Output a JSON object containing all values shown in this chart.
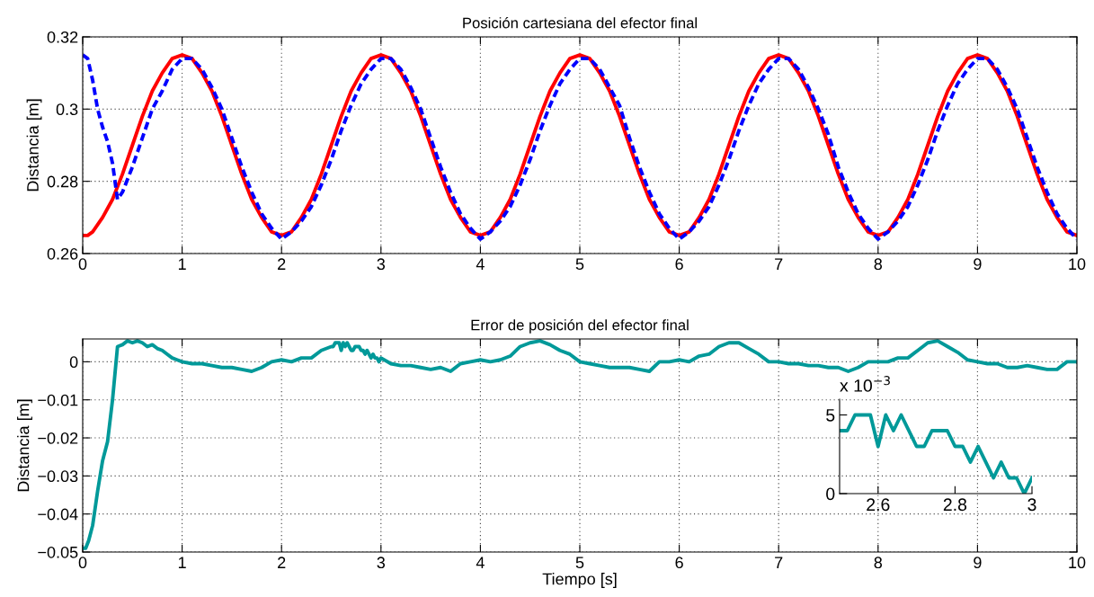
{
  "chart_data": [
    {
      "type": "line",
      "title": "Posición cartesiana del efector final",
      "ylabel": "Distancia [m]",
      "xlim": [
        0,
        10
      ],
      "ylim": [
        0.26,
        0.32
      ],
      "xticks": [
        0,
        1,
        2,
        3,
        4,
        5,
        6,
        7,
        8,
        9,
        10
      ],
      "yticks": [
        0.26,
        0.28,
        0.3,
        0.32
      ],
      "grid": true,
      "series": [
        {
          "color": "#ff0000",
          "line_style": "solid",
          "x": [
            0,
            0.05,
            0.1,
            0.2,
            0.3,
            0.4,
            0.5,
            0.6,
            0.7,
            0.8,
            0.9,
            1.0,
            1.1,
            1.2,
            1.3,
            1.4,
            1.5,
            1.6,
            1.7,
            1.8,
            1.9,
            2.0,
            2.1,
            2.2,
            2.3,
            2.4,
            2.5,
            2.6,
            2.7,
            2.8,
            2.9,
            3.0,
            3.1,
            3.2,
            3.3,
            3.4,
            3.5,
            3.6,
            3.7,
            3.8,
            3.9,
            4.0,
            4.1,
            4.2,
            4.3,
            4.4,
            4.5,
            4.6,
            4.7,
            4.8,
            4.9,
            5.0,
            5.1,
            5.2,
            5.3,
            5.4,
            5.5,
            5.6,
            5.7,
            5.8,
            5.9,
            6.0,
            6.1,
            6.2,
            6.3,
            6.4,
            6.5,
            6.6,
            6.7,
            6.8,
            6.9,
            7.0,
            7.1,
            7.2,
            7.3,
            7.4,
            7.5,
            7.6,
            7.7,
            7.8,
            7.9,
            8.0,
            8.1,
            8.2,
            8.3,
            8.4,
            8.5,
            8.6,
            8.7,
            8.8,
            8.9,
            9.0,
            9.1,
            9.2,
            9.3,
            9.4,
            9.5,
            9.6,
            9.7,
            9.8,
            9.9,
            10.0
          ],
          "values": [
            0.265,
            0.265,
            0.266,
            0.27,
            0.275,
            0.282,
            0.29,
            0.298,
            0.305,
            0.31,
            0.314,
            0.315,
            0.314,
            0.31,
            0.305,
            0.298,
            0.29,
            0.282,
            0.275,
            0.27,
            0.266,
            0.265,
            0.266,
            0.27,
            0.275,
            0.282,
            0.29,
            0.298,
            0.305,
            0.31,
            0.314,
            0.315,
            0.314,
            0.31,
            0.305,
            0.298,
            0.29,
            0.282,
            0.275,
            0.27,
            0.266,
            0.265,
            0.266,
            0.27,
            0.275,
            0.282,
            0.29,
            0.298,
            0.305,
            0.31,
            0.314,
            0.315,
            0.314,
            0.31,
            0.305,
            0.298,
            0.29,
            0.282,
            0.275,
            0.27,
            0.266,
            0.265,
            0.266,
            0.27,
            0.275,
            0.282,
            0.29,
            0.298,
            0.305,
            0.31,
            0.314,
            0.315,
            0.314,
            0.31,
            0.305,
            0.298,
            0.29,
            0.282,
            0.275,
            0.27,
            0.266,
            0.265,
            0.266,
            0.27,
            0.275,
            0.282,
            0.29,
            0.298,
            0.305,
            0.31,
            0.314,
            0.315,
            0.314,
            0.31,
            0.305,
            0.298,
            0.29,
            0.282,
            0.275,
            0.27,
            0.266,
            0.265
          ]
        },
        {
          "color": "#0000ff",
          "line_style": "dashed",
          "x": [
            0,
            0.05,
            0.1,
            0.15,
            0.2,
            0.25,
            0.3,
            0.35,
            0.4,
            0.5,
            0.6,
            0.7,
            0.8,
            0.9,
            1.0,
            1.1,
            1.2,
            1.3,
            1.4,
            1.5,
            1.6,
            1.7,
            1.8,
            1.9,
            2.0,
            2.1,
            2.2,
            2.3,
            2.4,
            2.5,
            2.6,
            2.7,
            2.8,
            2.9,
            3.0,
            3.1,
            3.2,
            3.3,
            3.4,
            3.5,
            3.6,
            3.7,
            3.8,
            3.9,
            4.0,
            4.1,
            4.2,
            4.3,
            4.4,
            4.5,
            4.6,
            4.7,
            4.8,
            4.9,
            5.0,
            5.1,
            5.2,
            5.3,
            5.4,
            5.5,
            5.6,
            5.7,
            5.8,
            5.9,
            6.0,
            6.1,
            6.2,
            6.3,
            6.4,
            6.5,
            6.6,
            6.7,
            6.8,
            6.9,
            7.0,
            7.1,
            7.2,
            7.3,
            7.4,
            7.5,
            7.6,
            7.7,
            7.8,
            7.9,
            8.0,
            8.1,
            8.2,
            8.3,
            8.4,
            8.5,
            8.6,
            8.7,
            8.8,
            8.9,
            9.0,
            9.1,
            9.2,
            9.3,
            9.4,
            9.5,
            9.6,
            9.7,
            9.8,
            9.9,
            10.0
          ],
          "values": [
            0.315,
            0.314,
            0.308,
            0.3,
            0.295,
            0.291,
            0.285,
            0.275,
            0.277,
            0.284,
            0.292,
            0.3,
            0.305,
            0.311,
            0.314,
            0.314,
            0.311,
            0.306,
            0.3,
            0.292,
            0.284,
            0.277,
            0.271,
            0.267,
            0.264,
            0.266,
            0.269,
            0.273,
            0.279,
            0.286,
            0.294,
            0.301,
            0.307,
            0.311,
            0.314,
            0.314,
            0.311,
            0.306,
            0.3,
            0.292,
            0.284,
            0.277,
            0.271,
            0.267,
            0.264,
            0.266,
            0.269,
            0.273,
            0.279,
            0.286,
            0.294,
            0.301,
            0.307,
            0.311,
            0.314,
            0.314,
            0.311,
            0.306,
            0.301,
            0.292,
            0.284,
            0.277,
            0.271,
            0.267,
            0.264,
            0.266,
            0.269,
            0.273,
            0.279,
            0.286,
            0.294,
            0.301,
            0.307,
            0.311,
            0.314,
            0.314,
            0.311,
            0.306,
            0.3,
            0.293,
            0.284,
            0.277,
            0.271,
            0.267,
            0.264,
            0.266,
            0.269,
            0.273,
            0.279,
            0.286,
            0.294,
            0.301,
            0.307,
            0.311,
            0.314,
            0.314,
            0.311,
            0.306,
            0.3,
            0.292,
            0.284,
            0.277,
            0.271,
            0.267,
            0.264
          ]
        }
      ]
    },
    {
      "type": "line",
      "title": "Error de posición del efector final",
      "xlabel": "Tiempo [s]",
      "ylabel": "Distancia [m]",
      "xlim": [
        0,
        10
      ],
      "ylim": [
        -0.05,
        0.006
      ],
      "xticks": [
        0,
        1,
        2,
        3,
        4,
        5,
        6,
        7,
        8,
        9,
        10
      ],
      "yticks": [
        {
          "value": -0.05,
          "label": "−0.05"
        },
        {
          "value": -0.04,
          "label": "−0.04"
        },
        {
          "value": -0.03,
          "label": "−0.03"
        },
        {
          "value": -0.02,
          "label": "−0.02"
        },
        {
          "value": -0.01,
          "label": "−0.01"
        },
        0
      ],
      "grid": true,
      "series": [
        {
          "color": "#009999",
          "line_style": "solid",
          "x": [
            0,
            0.03,
            0.06,
            0.1,
            0.15,
            0.2,
            0.25,
            0.3,
            0.35,
            0.4,
            0.45,
            0.5,
            0.55,
            0.6,
            0.65,
            0.7,
            0.75,
            0.8,
            0.85,
            0.9,
            0.95,
            1.0,
            1.1,
            1.2,
            1.3,
            1.4,
            1.5,
            1.6,
            1.7,
            1.8,
            1.9,
            2.0,
            2.1,
            2.2,
            2.3,
            2.4,
            2.5,
            2.52,
            2.54,
            2.58,
            2.6,
            2.62,
            2.64,
            2.66,
            2.7,
            2.72,
            2.74,
            2.78,
            2.8,
            2.82,
            2.84,
            2.86,
            2.9,
            2.92,
            2.94,
            2.96,
            2.98,
            3.0,
            3.1,
            3.2,
            3.3,
            3.4,
            3.5,
            3.6,
            3.7,
            3.8,
            3.9,
            4.0,
            4.1,
            4.2,
            4.3,
            4.4,
            4.5,
            4.6,
            4.7,
            4.8,
            4.9,
            5.0,
            5.1,
            5.2,
            5.3,
            5.4,
            5.5,
            5.6,
            5.7,
            5.8,
            5.9,
            6.0,
            6.1,
            6.2,
            6.3,
            6.4,
            6.5,
            6.6,
            6.7,
            6.8,
            6.9,
            7.0,
            7.1,
            7.2,
            7.3,
            7.4,
            7.5,
            7.6,
            7.7,
            7.8,
            7.9,
            8.0,
            8.1,
            8.2,
            8.3,
            8.4,
            8.5,
            8.6,
            8.7,
            8.8,
            8.9,
            9.0,
            9.1,
            9.2,
            9.3,
            9.4,
            9.5,
            9.6,
            9.7,
            9.8,
            9.9,
            10.0
          ],
          "values": [
            -0.049,
            -0.049,
            -0.047,
            -0.043,
            -0.034,
            -0.026,
            -0.021,
            -0.01,
            0.004,
            0.0045,
            0.0055,
            0.005,
            0.0055,
            0.005,
            0.004,
            0.0045,
            0.0035,
            0.003,
            0.002,
            0.001,
            0.0005,
            0.0,
            -0.0005,
            -0.0005,
            -0.001,
            -0.0015,
            -0.0015,
            -0.002,
            -0.0025,
            -0.0015,
            0.0,
            0.0005,
            0.0,
            0.001,
            0.001,
            0.003,
            0.004,
            0.004,
            0.005,
            0.005,
            0.003,
            0.005,
            0.004,
            0.005,
            0.003,
            0.003,
            0.004,
            0.004,
            0.003,
            0.003,
            0.002,
            0.003,
            0.001,
            0.002,
            0.001,
            0.001,
            0.0,
            0.001,
            -0.0005,
            -0.001,
            -0.001,
            -0.0015,
            -0.002,
            -0.0015,
            -0.0025,
            -0.0005,
            0.0,
            0.0005,
            0.0,
            0.0005,
            0.0015,
            0.004,
            0.005,
            0.0055,
            0.0045,
            0.003,
            0.002,
            0.0,
            -0.0005,
            -0.001,
            -0.0015,
            -0.0015,
            -0.0015,
            -0.002,
            -0.0025,
            0.0,
            0.0,
            0.0005,
            0.0,
            0.0015,
            0.002,
            0.004,
            0.005,
            0.005,
            0.0035,
            0.002,
            0.0,
            0.0,
            -0.0005,
            -0.0005,
            -0.001,
            -0.001,
            -0.0015,
            -0.0015,
            -0.0025,
            -0.0015,
            0.0,
            0.0,
            0.0,
            0.001,
            0.001,
            0.003,
            0.005,
            0.0055,
            0.004,
            0.0025,
            0.0005,
            0.0,
            -0.0005,
            -0.0005,
            -0.0015,
            -0.0015,
            -0.001,
            -0.0015,
            -0.002,
            -0.002,
            0.0,
            0.0
          ]
        }
      ]
    },
    {
      "type": "line",
      "xlim": [
        2.5,
        3.0
      ],
      "ylim": [
        0,
        6
      ],
      "xticks": [
        2.6,
        2.8,
        3
      ],
      "yticks": [
        0,
        5
      ],
      "annotations": [
        "x 10$^{−3}$"
      ],
      "series": [
        {
          "color": "#009999",
          "line_style": "solid",
          "x": [
            2.5,
            2.52,
            2.54,
            2.58,
            2.6,
            2.62,
            2.64,
            2.66,
            2.7,
            2.72,
            2.74,
            2.78,
            2.8,
            2.82,
            2.84,
            2.86,
            2.9,
            2.92,
            2.94,
            2.96,
            2.98,
            3.0
          ],
          "values": [
            4,
            4,
            5,
            5,
            3,
            5,
            4,
            5,
            3,
            3,
            4,
            4,
            3,
            3,
            2,
            3,
            1,
            2,
            1,
            1,
            0,
            1
          ]
        }
      ]
    }
  ]
}
